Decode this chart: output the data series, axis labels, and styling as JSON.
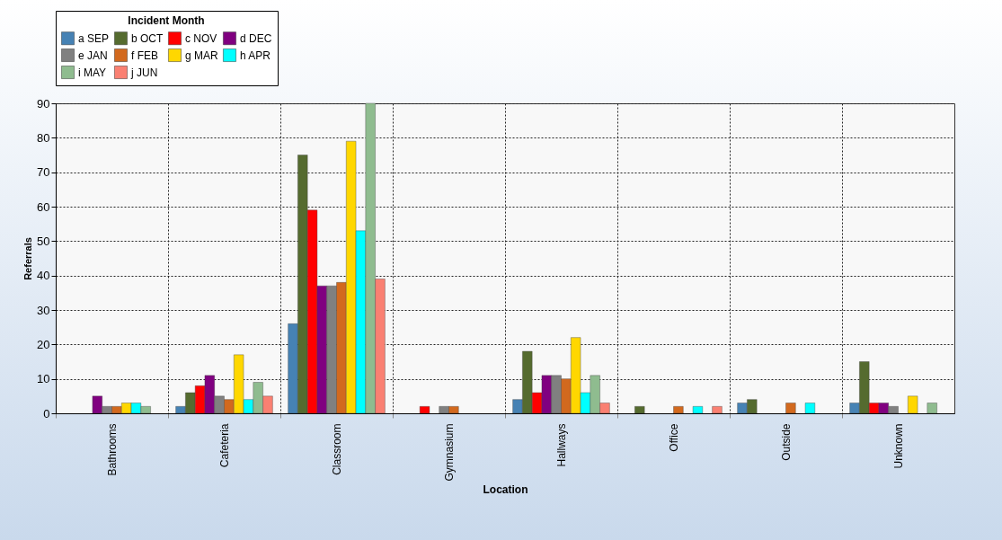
{
  "chart_data": {
    "type": "bar",
    "xlabel": "Location",
    "ylabel": "Referrals",
    "legend_title": "Incident Month",
    "legend": "top",
    "grid": true,
    "categories": [
      "Bathrooms",
      "Cafeteria",
      "Classroom",
      "Gymnasium",
      "Hallways",
      "Office",
      "Outside",
      "Unknown"
    ],
    "ylim": [
      0,
      90
    ],
    "yticks": [
      0,
      10,
      20,
      30,
      40,
      50,
      60,
      70,
      80,
      90
    ],
    "series": [
      {
        "name": "a SEP",
        "color": "#4682b4",
        "values": [
          null,
          2,
          26,
          null,
          4,
          null,
          3,
          3
        ]
      },
      {
        "name": "b OCT",
        "color": "#556b2f",
        "values": [
          null,
          6,
          75,
          null,
          18,
          2,
          4,
          15
        ]
      },
      {
        "name": "c NOV",
        "color": "#ff0000",
        "values": [
          null,
          8,
          59,
          2,
          6,
          null,
          null,
          3
        ]
      },
      {
        "name": "d DEC",
        "color": "#800080",
        "values": [
          5,
          11,
          37,
          null,
          11,
          null,
          null,
          3
        ]
      },
      {
        "name": "e JAN",
        "color": "#808080",
        "values": [
          2,
          5,
          37,
          2,
          11,
          null,
          null,
          2
        ]
      },
      {
        "name": "f FEB",
        "color": "#d2691e",
        "values": [
          2,
          4,
          38,
          2,
          10,
          2,
          3,
          null
        ]
      },
      {
        "name": "g MAR",
        "color": "#ffd700",
        "values": [
          3,
          17,
          79,
          null,
          22,
          null,
          null,
          5
        ]
      },
      {
        "name": "h APR",
        "color": "#00ffff",
        "values": [
          3,
          4,
          53,
          null,
          6,
          2,
          3,
          null
        ]
      },
      {
        "name": "i MAY",
        "color": "#8fbc8f",
        "values": [
          2,
          9,
          90,
          null,
          11,
          null,
          null,
          3
        ]
      },
      {
        "name": "j JUN",
        "color": "#fa8072",
        "values": [
          null,
          5,
          39,
          null,
          3,
          2,
          null,
          null
        ]
      }
    ]
  }
}
